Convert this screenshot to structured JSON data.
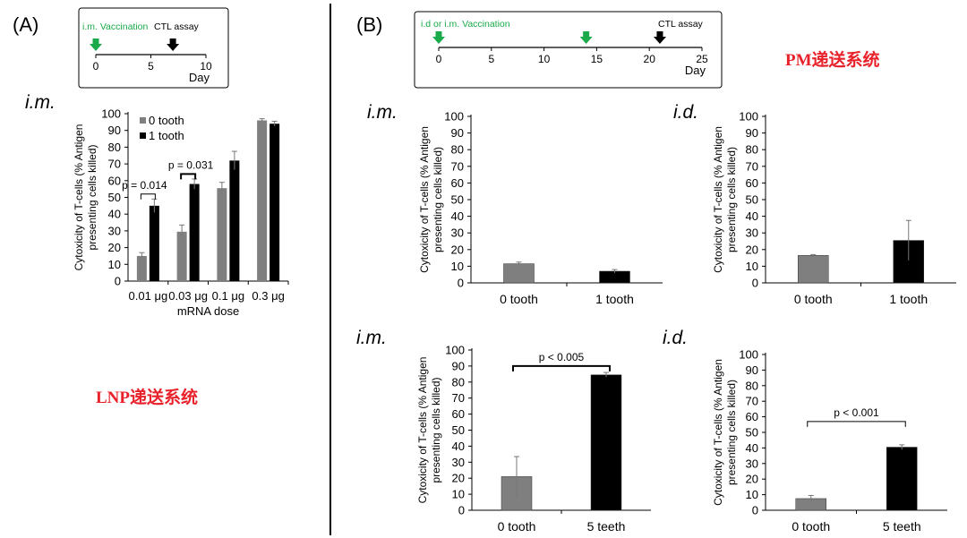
{
  "panels": {
    "A": {
      "label": "(A)",
      "route": "i.m.",
      "delivery_system": "LNP递送系统",
      "timeline": {
        "vaccination_label": "i.m. Vaccination",
        "assay_label": "CTL assay",
        "ticks": [
          "0",
          "5",
          "10"
        ],
        "axis_label": "Day",
        "max_day": 10,
        "vaccination_days": [
          0
        ],
        "assay_day": 7
      }
    },
    "B": {
      "label": "(B)",
      "delivery_system": "PM递送系统",
      "timeline": {
        "vaccination_label": "i.d or i.m. Vaccination",
        "assay_label": "CTL assay",
        "ticks": [
          "0",
          "5",
          "10",
          "15",
          "20",
          "25"
        ],
        "axis_label": "Day",
        "max_day": 25,
        "vaccination_days": [
          0,
          14
        ],
        "assay_day": 21
      }
    }
  },
  "colors": {
    "grey_bar": "#7f7f7f",
    "black_bar": "#000000",
    "arrow_green": "#1aaa4a",
    "arrow_black": "#000000",
    "red_text": "#e8212a"
  },
  "chart_data": [
    {
      "id": "A",
      "type": "bar",
      "route": "i.m.",
      "title": "",
      "xlabel": "mRNA dose",
      "ylabel_lines": [
        "Cytoxicity of T-cells (% Antigen",
        "presenting cells killed)"
      ],
      "ylim": [
        0,
        100
      ],
      "yticks": [
        0,
        10,
        20,
        30,
        40,
        50,
        60,
        70,
        80,
        90,
        100
      ],
      "categories": [
        "0.01 μg",
        "0.03 μg",
        "0.1 μg",
        "0.3 μg"
      ],
      "series": [
        {
          "name": "0 tooth",
          "color": "#7f7f7f",
          "values": [
            15,
            29.5,
            55.5,
            96
          ],
          "errors": [
            2,
            4,
            3.5,
            1
          ]
        },
        {
          "name": "1 tooth",
          "color": "#000000",
          "values": [
            45,
            58,
            72,
            94
          ],
          "errors": [
            4,
            3,
            5.5,
            1.5
          ]
        }
      ],
      "legend": "top-left",
      "annotations": [
        {
          "text": "p = 0.014",
          "category_index": 0,
          "y": 52
        },
        {
          "text": "p = 0.031",
          "category_index": 1,
          "y": 64
        }
      ]
    },
    {
      "id": "B1",
      "type": "bar",
      "route": "i.m.",
      "ylabel_lines": [
        "Cytoxicity of T-cells (% Antigen",
        "presenting cells killed)"
      ],
      "ylim": [
        0,
        100
      ],
      "yticks": [
        0,
        10,
        20,
        30,
        40,
        50,
        60,
        70,
        80,
        90,
        100
      ],
      "categories": [
        "0 tooth",
        "1 tooth"
      ],
      "values": [
        11.5,
        7
      ],
      "errors": [
        1,
        1
      ],
      "colors": [
        "#7f7f7f",
        "#000000"
      ],
      "annotation": null
    },
    {
      "id": "B2",
      "type": "bar",
      "route": "i.d.",
      "ylabel_lines": [
        "Cytoxicity of T-cells (% Antigen",
        "presenting cells killed)"
      ],
      "ylim": [
        0,
        100
      ],
      "yticks": [
        0,
        10,
        20,
        30,
        40,
        50,
        60,
        70,
        80,
        90,
        100
      ],
      "categories": [
        "0 tooth",
        "1 tooth"
      ],
      "values": [
        16.5,
        25.5
      ],
      "errors": [
        0.5,
        12
      ],
      "colors": [
        "#7f7f7f",
        "#000000"
      ],
      "annotation": null
    },
    {
      "id": "B3",
      "type": "bar",
      "route": "i.m.",
      "ylabel_lines": [
        "Cytoxicity of T-cells (% Antigen",
        "presenting cells killed)"
      ],
      "ylim": [
        0,
        100
      ],
      "yticks": [
        0,
        10,
        20,
        30,
        40,
        50,
        60,
        70,
        80,
        90,
        100
      ],
      "categories": [
        "0 tooth",
        "5 teeth"
      ],
      "values": [
        21,
        84.5
      ],
      "errors": [
        12.5,
        1.5
      ],
      "colors": [
        "#7f7f7f",
        "#000000"
      ],
      "annotation": {
        "text": "p < 0.005",
        "y": 90
      }
    },
    {
      "id": "B4",
      "type": "bar",
      "route": "i.d.",
      "ylabel_lines": [
        "Cytoxicity of T-cells (% Antigen",
        "presenting cells killed)"
      ],
      "ylim": [
        0,
        100
      ],
      "yticks": [
        0,
        10,
        20,
        30,
        40,
        50,
        60,
        70,
        80,
        90,
        100
      ],
      "categories": [
        "0 tooth",
        "5 teeth"
      ],
      "values": [
        7.5,
        40.5
      ],
      "errors": [
        2,
        1.5
      ],
      "colors": [
        "#7f7f7f",
        "#000000"
      ],
      "annotation": {
        "text": "p < 0.001",
        "y": 57
      }
    }
  ]
}
